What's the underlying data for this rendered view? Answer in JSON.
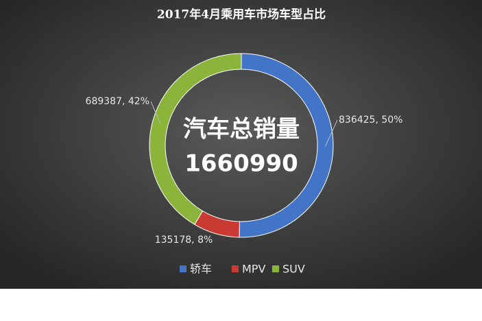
{
  "chart_data": {
    "type": "donut",
    "title": "2017年4月乘用车市场车型占比",
    "center_title": "汽车总销量",
    "center_value": "1660990",
    "categories": [
      "轿车",
      "MPV",
      "SUV"
    ],
    "values": [
      836425,
      135178,
      689387
    ],
    "value_labels": [
      "836425, 50%",
      "135178, 8%",
      "689387, 42%"
    ],
    "colors": [
      "#4274c7",
      "#c83a32",
      "#8ab43a"
    ],
    "legend": "bottom"
  }
}
